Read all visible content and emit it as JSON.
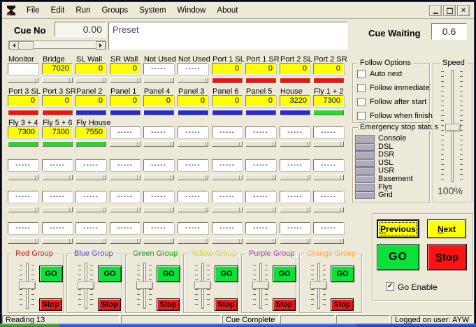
{
  "window": {
    "app_icon": "hourglass-logo",
    "menu_items": [
      "File",
      "Edit",
      "Run",
      "Groups",
      "System",
      "Window",
      "About"
    ]
  },
  "header": {
    "cue_no_label": "Cue No",
    "cue_no_value": "0.00",
    "preset_text": "Preset",
    "cue_waiting_label": "Cue Waiting",
    "cue_waiting_value": "0.6"
  },
  "channels": {
    "rows": [
      {
        "cells": [
          {
            "label": "Monitor",
            "value": "",
            "box": "white",
            "bar": "gray"
          },
          {
            "label": "Bridge",
            "value": "7020",
            "box": "yellow",
            "bar": "gray"
          },
          {
            "label": "SL Wall",
            "value": "0",
            "box": "yellow",
            "bar": "gray"
          },
          {
            "label": "SR Wall",
            "value": "0",
            "box": "yellow",
            "bar": "gray"
          },
          {
            "label": "Not Used",
            "value": "-----",
            "box": "white",
            "bar": "gray"
          },
          {
            "label": "Not Used",
            "value": "-----",
            "box": "white",
            "bar": "gray"
          },
          {
            "label": "Port 1 SL",
            "value": "0",
            "box": "yellow",
            "bar": "red"
          },
          {
            "label": "Port 1 SR",
            "value": "0",
            "box": "yellow",
            "bar": "red"
          },
          {
            "label": "Port 2 SL",
            "value": "0",
            "box": "yellow",
            "bar": "red"
          },
          {
            "label": "Port 2 SR",
            "value": "0",
            "box": "yellow",
            "bar": "red"
          }
        ]
      },
      {
        "cells": [
          {
            "label": "Port 3 SL",
            "value": "0",
            "box": "yellow",
            "bar": "red"
          },
          {
            "label": "Port 3 SR",
            "value": "0",
            "box": "yellow",
            "bar": "red"
          },
          {
            "label": "Panel 2",
            "value": "0",
            "box": "yellow",
            "bar": "blue"
          },
          {
            "label": "Panel 1",
            "value": "0",
            "box": "yellow",
            "bar": "blue"
          },
          {
            "label": "Panel 4",
            "value": "0",
            "box": "yellow",
            "bar": "blue"
          },
          {
            "label": "Panel 3",
            "value": "0",
            "box": "yellow",
            "bar": "blue"
          },
          {
            "label": "Panel 6",
            "value": "0",
            "box": "yellow",
            "bar": "blue"
          },
          {
            "label": "Panel 5",
            "value": "0",
            "box": "yellow",
            "bar": "blue"
          },
          {
            "label": "House",
            "value": "3220",
            "box": "yellow",
            "bar": "blue"
          },
          {
            "label": "Fly 1 + 2",
            "value": "7300",
            "box": "yellow",
            "bar": "green"
          }
        ]
      },
      {
        "cells": [
          {
            "label": "Fly 3 + 4",
            "value": "7300",
            "box": "yellow",
            "bar": "green"
          },
          {
            "label": "Fly 5 + 6",
            "value": "7300",
            "box": "yellow",
            "bar": "green"
          },
          {
            "label": "Fly House",
            "value": "7550",
            "box": "yellow",
            "bar": "green"
          },
          {
            "label": "",
            "value": "-----",
            "box": "white",
            "bar": "gray"
          },
          {
            "label": "",
            "value": "-----",
            "box": "white",
            "bar": "gray"
          },
          {
            "label": "",
            "value": "-----",
            "box": "white",
            "bar": "gray"
          },
          {
            "label": "",
            "value": "-----",
            "box": "white",
            "bar": "gray"
          },
          {
            "label": "",
            "value": "-----",
            "box": "white",
            "bar": "gray"
          },
          {
            "label": "",
            "value": "-----",
            "box": "white",
            "bar": "gray"
          },
          {
            "label": "",
            "value": "-----",
            "box": "white",
            "bar": "gray"
          }
        ]
      },
      {
        "cells": [
          {
            "label": "",
            "value": "-----",
            "box": "white",
            "bar": "gray"
          },
          {
            "label": "",
            "value": "-----",
            "box": "white",
            "bar": "gray"
          },
          {
            "label": "",
            "value": "-----",
            "box": "white",
            "bar": "gray"
          },
          {
            "label": "",
            "value": "-----",
            "box": "white",
            "bar": "gray"
          },
          {
            "label": "",
            "value": "-----",
            "box": "white",
            "bar": "gray"
          },
          {
            "label": "",
            "value": "-----",
            "box": "white",
            "bar": "gray"
          },
          {
            "label": "",
            "value": "-----",
            "box": "white",
            "bar": "gray"
          },
          {
            "label": "",
            "value": "-----",
            "box": "white",
            "bar": "gray"
          },
          {
            "label": "",
            "value": "-----",
            "box": "white",
            "bar": "gray"
          },
          {
            "label": "",
            "value": "-----",
            "box": "white",
            "bar": "gray"
          }
        ]
      },
      {
        "cells": [
          {
            "label": "",
            "value": "-----",
            "box": "white",
            "bar": "gray"
          },
          {
            "label": "",
            "value": "-----",
            "box": "white",
            "bar": "gray"
          },
          {
            "label": "",
            "value": "-----",
            "box": "white",
            "bar": "gray"
          },
          {
            "label": "",
            "value": "-----",
            "box": "white",
            "bar": "gray"
          },
          {
            "label": "",
            "value": "-----",
            "box": "white",
            "bar": "gray"
          },
          {
            "label": "",
            "value": "-----",
            "box": "white",
            "bar": "gray"
          },
          {
            "label": "",
            "value": "-----",
            "box": "white",
            "bar": "gray"
          },
          {
            "label": "",
            "value": "-----",
            "box": "white",
            "bar": "gray"
          },
          {
            "label": "",
            "value": "-----",
            "box": "white",
            "bar": "gray"
          },
          {
            "label": "",
            "value": "-----",
            "box": "white",
            "bar": "gray"
          }
        ]
      },
      {
        "cells": [
          {
            "label": "",
            "value": "-----",
            "box": "white",
            "bar": "gray"
          },
          {
            "label": "",
            "value": "-----",
            "box": "white",
            "bar": "gray"
          },
          {
            "label": "",
            "value": "-----",
            "box": "white",
            "bar": "gray"
          },
          {
            "label": "",
            "value": "-----",
            "box": "white",
            "bar": "gray"
          },
          {
            "label": "",
            "value": "-----",
            "box": "white",
            "bar": "gray"
          },
          {
            "label": "",
            "value": "-----",
            "box": "white",
            "bar": "gray"
          },
          {
            "label": "",
            "value": "-----",
            "box": "white",
            "bar": "gray"
          },
          {
            "label": "",
            "value": "-----",
            "box": "white",
            "bar": "gray"
          },
          {
            "label": "",
            "value": "-----",
            "box": "white",
            "bar": "gray"
          },
          {
            "label": "",
            "value": "-----",
            "box": "white",
            "bar": "gray"
          }
        ]
      }
    ]
  },
  "follow_options": {
    "title": "Follow Options",
    "options": [
      {
        "label": "Auto next",
        "checked": false
      },
      {
        "label": "Follow immediate",
        "checked": false
      },
      {
        "label": "Follow after start",
        "checked": false
      },
      {
        "label": "Follow when finish",
        "checked": false
      }
    ]
  },
  "speed": {
    "title": "Speed",
    "percent_label": "100%"
  },
  "emergency_stop": {
    "title": "Emergency stop status",
    "stations": [
      "Console",
      "DSL",
      "DSR",
      "USL",
      "USR",
      "Basement",
      "Flys",
      "Grid"
    ]
  },
  "cue_controls": {
    "previous_label": "Previous",
    "next_label": "Next",
    "go_label": "GO",
    "stop_label": "Stop",
    "go_enable_label": "Go Enable",
    "go_enable_checked": true
  },
  "fader_groups": {
    "go_label": "GO",
    "stop_label": "Stop",
    "groups": [
      {
        "name": "Red Group",
        "color": "#e01010"
      },
      {
        "name": "Blue Group",
        "color": "#4a4ae0"
      },
      {
        "name": "Green Group",
        "color": "#0e9a0e"
      },
      {
        "name": "Yellow Group",
        "color": "#cfcf4a"
      },
      {
        "name": "Purple Group",
        "color": "#a031b4"
      },
      {
        "name": "Orange Group",
        "color": "#ffa452"
      }
    ]
  },
  "status_bar": {
    "panels": [
      "Reading 13",
      "",
      "Cue Complete",
      "",
      "",
      "Logged on user: AYW"
    ]
  },
  "colors": {
    "value_yellow": "#ffff00",
    "bar_red": "#ee1414",
    "bar_blue": "#2a2ac8",
    "bar_green": "#28d82e",
    "button_go": "#0ce13a",
    "button_stop": "#f81414",
    "button_yellow": "#ffff00"
  }
}
